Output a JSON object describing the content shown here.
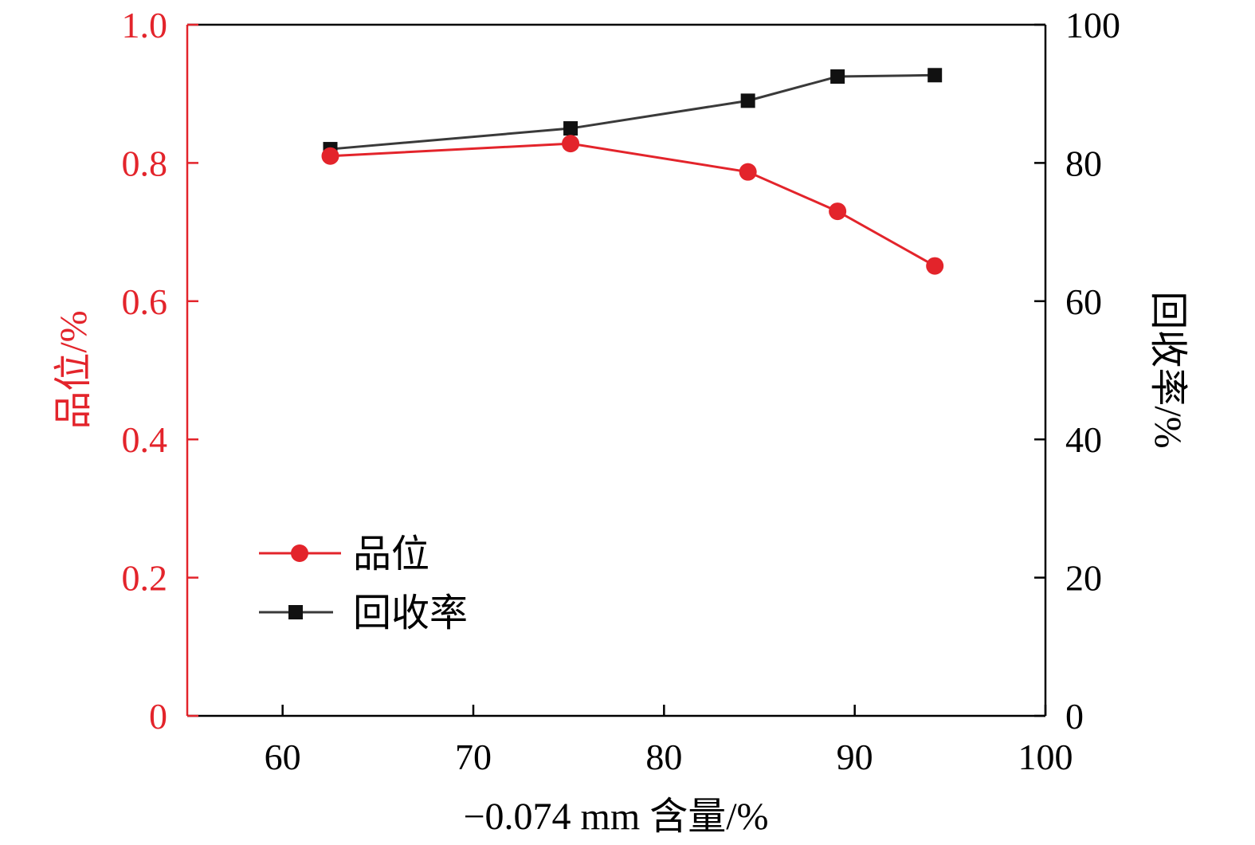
{
  "colors": {
    "grade": "#e3242b",
    "recovery": "#3a3a3a",
    "marker_recovery": "#111111",
    "axis_black": "#000000"
  },
  "chart_data": {
    "type": "line",
    "x": [
      62.5,
      75.1,
      84.4,
      89.1,
      94.2
    ],
    "xlabel": "−0.074 mm 含量/%",
    "xlim": [
      55,
      100
    ],
    "xticks": [
      60,
      70,
      80,
      90,
      100
    ],
    "xtick_labels": [
      "60",
      "70",
      "80",
      "90",
      "100"
    ],
    "y_left": {
      "label": "品位/%",
      "lim": [
        0,
        1.0
      ],
      "ticks": [
        0,
        0.2,
        0.4,
        0.6,
        0.8,
        1.0
      ],
      "tick_labels": [
        "0",
        "0.2",
        "0.4",
        "0.6",
        "0.8",
        "1.0"
      ]
    },
    "y_right": {
      "label": "回收率/%",
      "lim": [
        0,
        100
      ],
      "ticks": [
        0,
        20,
        40,
        60,
        80,
        100
      ],
      "tick_labels": [
        "0",
        "20",
        "40",
        "60",
        "80",
        "100"
      ]
    },
    "series": [
      {
        "name": "品位",
        "axis": "left",
        "marker": "circle",
        "values": [
          0.81,
          0.828,
          0.787,
          0.73,
          0.651
        ]
      },
      {
        "name": "回收率",
        "axis": "right",
        "marker": "square",
        "values": [
          82.0,
          85.0,
          89.0,
          92.5,
          92.7
        ]
      }
    ],
    "legend": "lower-left",
    "grid": false
  }
}
